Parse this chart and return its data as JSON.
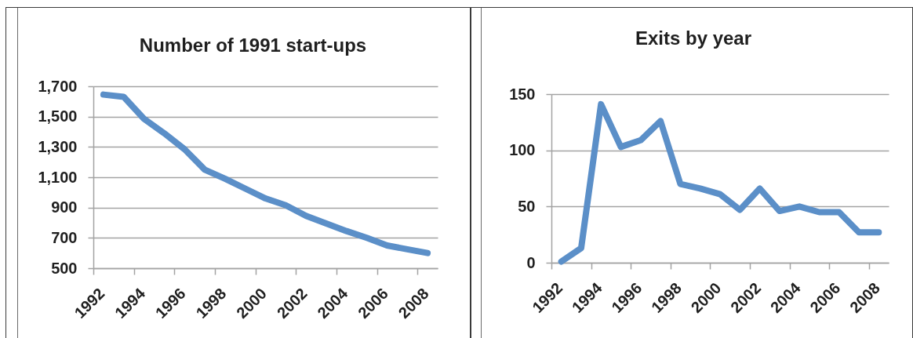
{
  "chart_data": [
    {
      "type": "line",
      "title": "Number of 1991 start-ups",
      "categories": [
        "1992",
        null,
        "1994",
        null,
        "1996",
        null,
        "1998",
        null,
        "2000",
        null,
        "2002",
        null,
        "2004",
        null,
        "2006",
        null,
        "2008"
      ],
      "series": [
        {
          "color": "#5b8fc8",
          "values": [
            1645,
            1630,
            1485,
            1390,
            1285,
            1150,
            1090,
            1025,
            960,
            915,
            845,
            795,
            745,
            700,
            650,
            625,
            600
          ]
        }
      ],
      "ylim": [
        500,
        1700
      ],
      "yticks": [
        500,
        700,
        900,
        {
          "value": 1100,
          "label": "1,100"
        },
        {
          "value": 1300,
          "label": "1,300"
        },
        {
          "value": 1500,
          "label": "1,500"
        },
        {
          "value": 1700,
          "label": "1,700"
        }
      ],
      "grid": "y"
    },
    {
      "type": "line",
      "title": "Exits by year",
      "categories": [
        "1992",
        null,
        "1994",
        null,
        "1996",
        null,
        "1998",
        null,
        "2000",
        null,
        "2002",
        null,
        "2004",
        null,
        "2006",
        null,
        "2008"
      ],
      "series": [
        {
          "color": "#5b8fc8",
          "values": [
            1,
            13,
            141,
            103,
            109,
            126,
            70,
            66,
            61,
            47,
            66,
            46,
            50,
            45,
            45,
            27,
            27
          ]
        }
      ],
      "ylim": [
        0,
        150
      ],
      "yticks": [
        0,
        50,
        100,
        150
      ],
      "grid": "y"
    }
  ]
}
